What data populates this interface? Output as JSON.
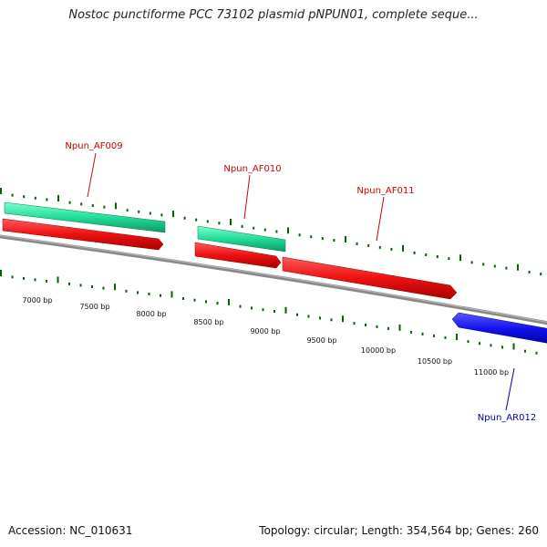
{
  "title": "Nostoc punctiforme PCC 73102 plasmid pNPUN01, complete seque...",
  "footer": {
    "accession": "Accession: NC_010631",
    "summary": "Topology: circular; Length: 354,564 bp; Genes: 260"
  },
  "ruler": {
    "labels": [
      "7000 bp",
      "7500 bp",
      "8000 bp",
      "8500 bp",
      "9000 bp",
      "9500 bp",
      "10000 bp",
      "10500 bp",
      "11000 bp"
    ]
  },
  "genes": [
    {
      "name": "Npun_AF009",
      "color": "#cc0000"
    },
    {
      "name": "Npun_AF010",
      "color": "#cc0000"
    },
    {
      "name": "Npun_AF011",
      "color": "#cc0000"
    },
    {
      "name": "Npun_AR012",
      "color": "#0000aa"
    }
  ],
  "colors": {
    "forward_gene": "#ee1111",
    "reverse_gene": "#1111ee",
    "cds": "#22dd99",
    "backbone": "#888888",
    "ticks": "#006600"
  }
}
